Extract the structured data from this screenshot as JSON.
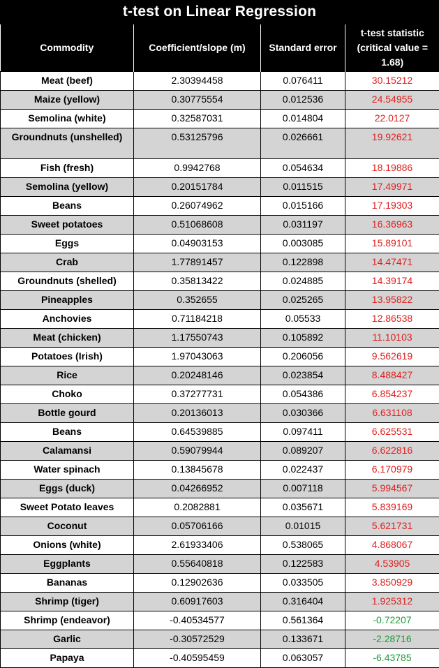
{
  "title": "t-test on Linear Regression",
  "headers": {
    "commodity": "Commodity",
    "coefficient": "Coefficient/slope (m)",
    "std_error": "Standard error",
    "tstat": "t-test statistic (critical value = 1.68)"
  },
  "colors": {
    "header_bg": "#000000",
    "header_text": "#ffffff",
    "shaded_row": "#d4d4d4",
    "significant_tstat": "#e0201f",
    "nonsignificant_tstat": "#1f9a3a"
  },
  "rows": [
    {
      "commodity": "Meat (beef)",
      "coefficient": "2.30394458",
      "std_error": "0.076411",
      "tstat": "30.15212"
    },
    {
      "commodity": "Maize (yellow)",
      "coefficient": "0.30775554",
      "std_error": "0.012536",
      "tstat": "24.54955"
    },
    {
      "commodity": "Semolina (white)",
      "coefficient": "0.32587031",
      "std_error": "0.014804",
      "tstat": "22.0127"
    },
    {
      "commodity": "Groundnuts (unshelled)",
      "coefficient": "0.53125796",
      "std_error": "0.026661",
      "tstat": "19.92621"
    },
    {
      "commodity": "Fish (fresh)",
      "coefficient": "0.9942768",
      "std_error": "0.054634",
      "tstat": "18.19886"
    },
    {
      "commodity": "Semolina (yellow)",
      "coefficient": "0.20151784",
      "std_error": "0.011515",
      "tstat": "17.49971"
    },
    {
      "commodity": "Beans",
      "coefficient": "0.26074962",
      "std_error": "0.015166",
      "tstat": "17.19303"
    },
    {
      "commodity": "Sweet potatoes",
      "coefficient": "0.51068608",
      "std_error": "0.031197",
      "tstat": "16.36963"
    },
    {
      "commodity": "Eggs",
      "coefficient": "0.04903153",
      "std_error": "0.003085",
      "tstat": "15.89101"
    },
    {
      "commodity": "Crab",
      "coefficient": "1.77891457",
      "std_error": "0.122898",
      "tstat": "14.47471"
    },
    {
      "commodity": "Groundnuts (shelled)",
      "coefficient": "0.35813422",
      "std_error": "0.024885",
      "tstat": "14.39174"
    },
    {
      "commodity": "Pineapples",
      "coefficient": "0.352655",
      "std_error": "0.025265",
      "tstat": "13.95822"
    },
    {
      "commodity": "Anchovies",
      "coefficient": "0.71184218",
      "std_error": "0.05533",
      "tstat": "12.86538"
    },
    {
      "commodity": "Meat (chicken)",
      "coefficient": "1.17550743",
      "std_error": "0.105892",
      "tstat": "11.10103"
    },
    {
      "commodity": "Potatoes (Irish)",
      "coefficient": "1.97043063",
      "std_error": "0.206056",
      "tstat": "9.562619"
    },
    {
      "commodity": "Rice",
      "coefficient": "0.20248146",
      "std_error": "0.023854",
      "tstat": "8.488427"
    },
    {
      "commodity": "Choko",
      "coefficient": "0.37277731",
      "std_error": "0.054386",
      "tstat": "6.854237"
    },
    {
      "commodity": "Bottle gourd",
      "coefficient": "0.20136013",
      "std_error": "0.030366",
      "tstat": "6.631108"
    },
    {
      "commodity": "Beans",
      "coefficient": "0.64539885",
      "std_error": "0.097411",
      "tstat": "6.625531"
    },
    {
      "commodity": "Calamansi",
      "coefficient": "0.59079944",
      "std_error": "0.089207",
      "tstat": "6.622816"
    },
    {
      "commodity": "Water spinach",
      "coefficient": "0.13845678",
      "std_error": "0.022437",
      "tstat": "6.170979"
    },
    {
      "commodity": "Eggs (duck)",
      "coefficient": "0.04266952",
      "std_error": "0.007118",
      "tstat": "5.994567"
    },
    {
      "commodity": "Sweet Potato leaves",
      "coefficient": "0.2082881",
      "std_error": "0.035671",
      "tstat": "5.839169"
    },
    {
      "commodity": "Coconut",
      "coefficient": "0.05706166",
      "std_error": "0.01015",
      "tstat": "5.621731"
    },
    {
      "commodity": "Onions (white)",
      "coefficient": "2.61933406",
      "std_error": "0.538065",
      "tstat": "4.868067"
    },
    {
      "commodity": "Eggplants",
      "coefficient": "0.55640818",
      "std_error": "0.122583",
      "tstat": "4.53905"
    },
    {
      "commodity": "Bananas",
      "coefficient": "0.12902636",
      "std_error": "0.033505",
      "tstat": "3.850929"
    },
    {
      "commodity": "Shrimp (tiger)",
      "coefficient": "0.60917603",
      "std_error": "0.316404",
      "tstat": "1.925312"
    },
    {
      "commodity": "Shrimp (endeavor)",
      "coefficient": "-0.40534577",
      "std_error": "0.561364",
      "tstat": "-0.72207"
    },
    {
      "commodity": "Garlic",
      "coefficient": "-0.30572529",
      "std_error": "0.133671",
      "tstat": "-2.28716"
    },
    {
      "commodity": "Papaya",
      "coefficient": "-0.40595459",
      "std_error": "0.063057",
      "tstat": "-6.43785"
    }
  ]
}
